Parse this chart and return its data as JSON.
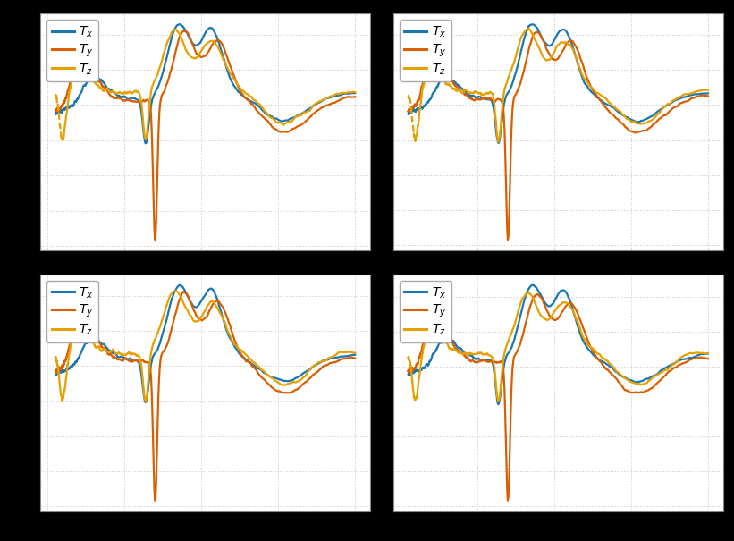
{
  "colors": {
    "Tx": "#1878b4",
    "Ty": "#d95f00",
    "Tz": "#e8a000"
  },
  "fig_bg": "#000000",
  "subplot_bg": "#ffffff",
  "grid_color": "#c8c8c8",
  "n_points": 600,
  "freq_min": 5,
  "freq_max": 200
}
